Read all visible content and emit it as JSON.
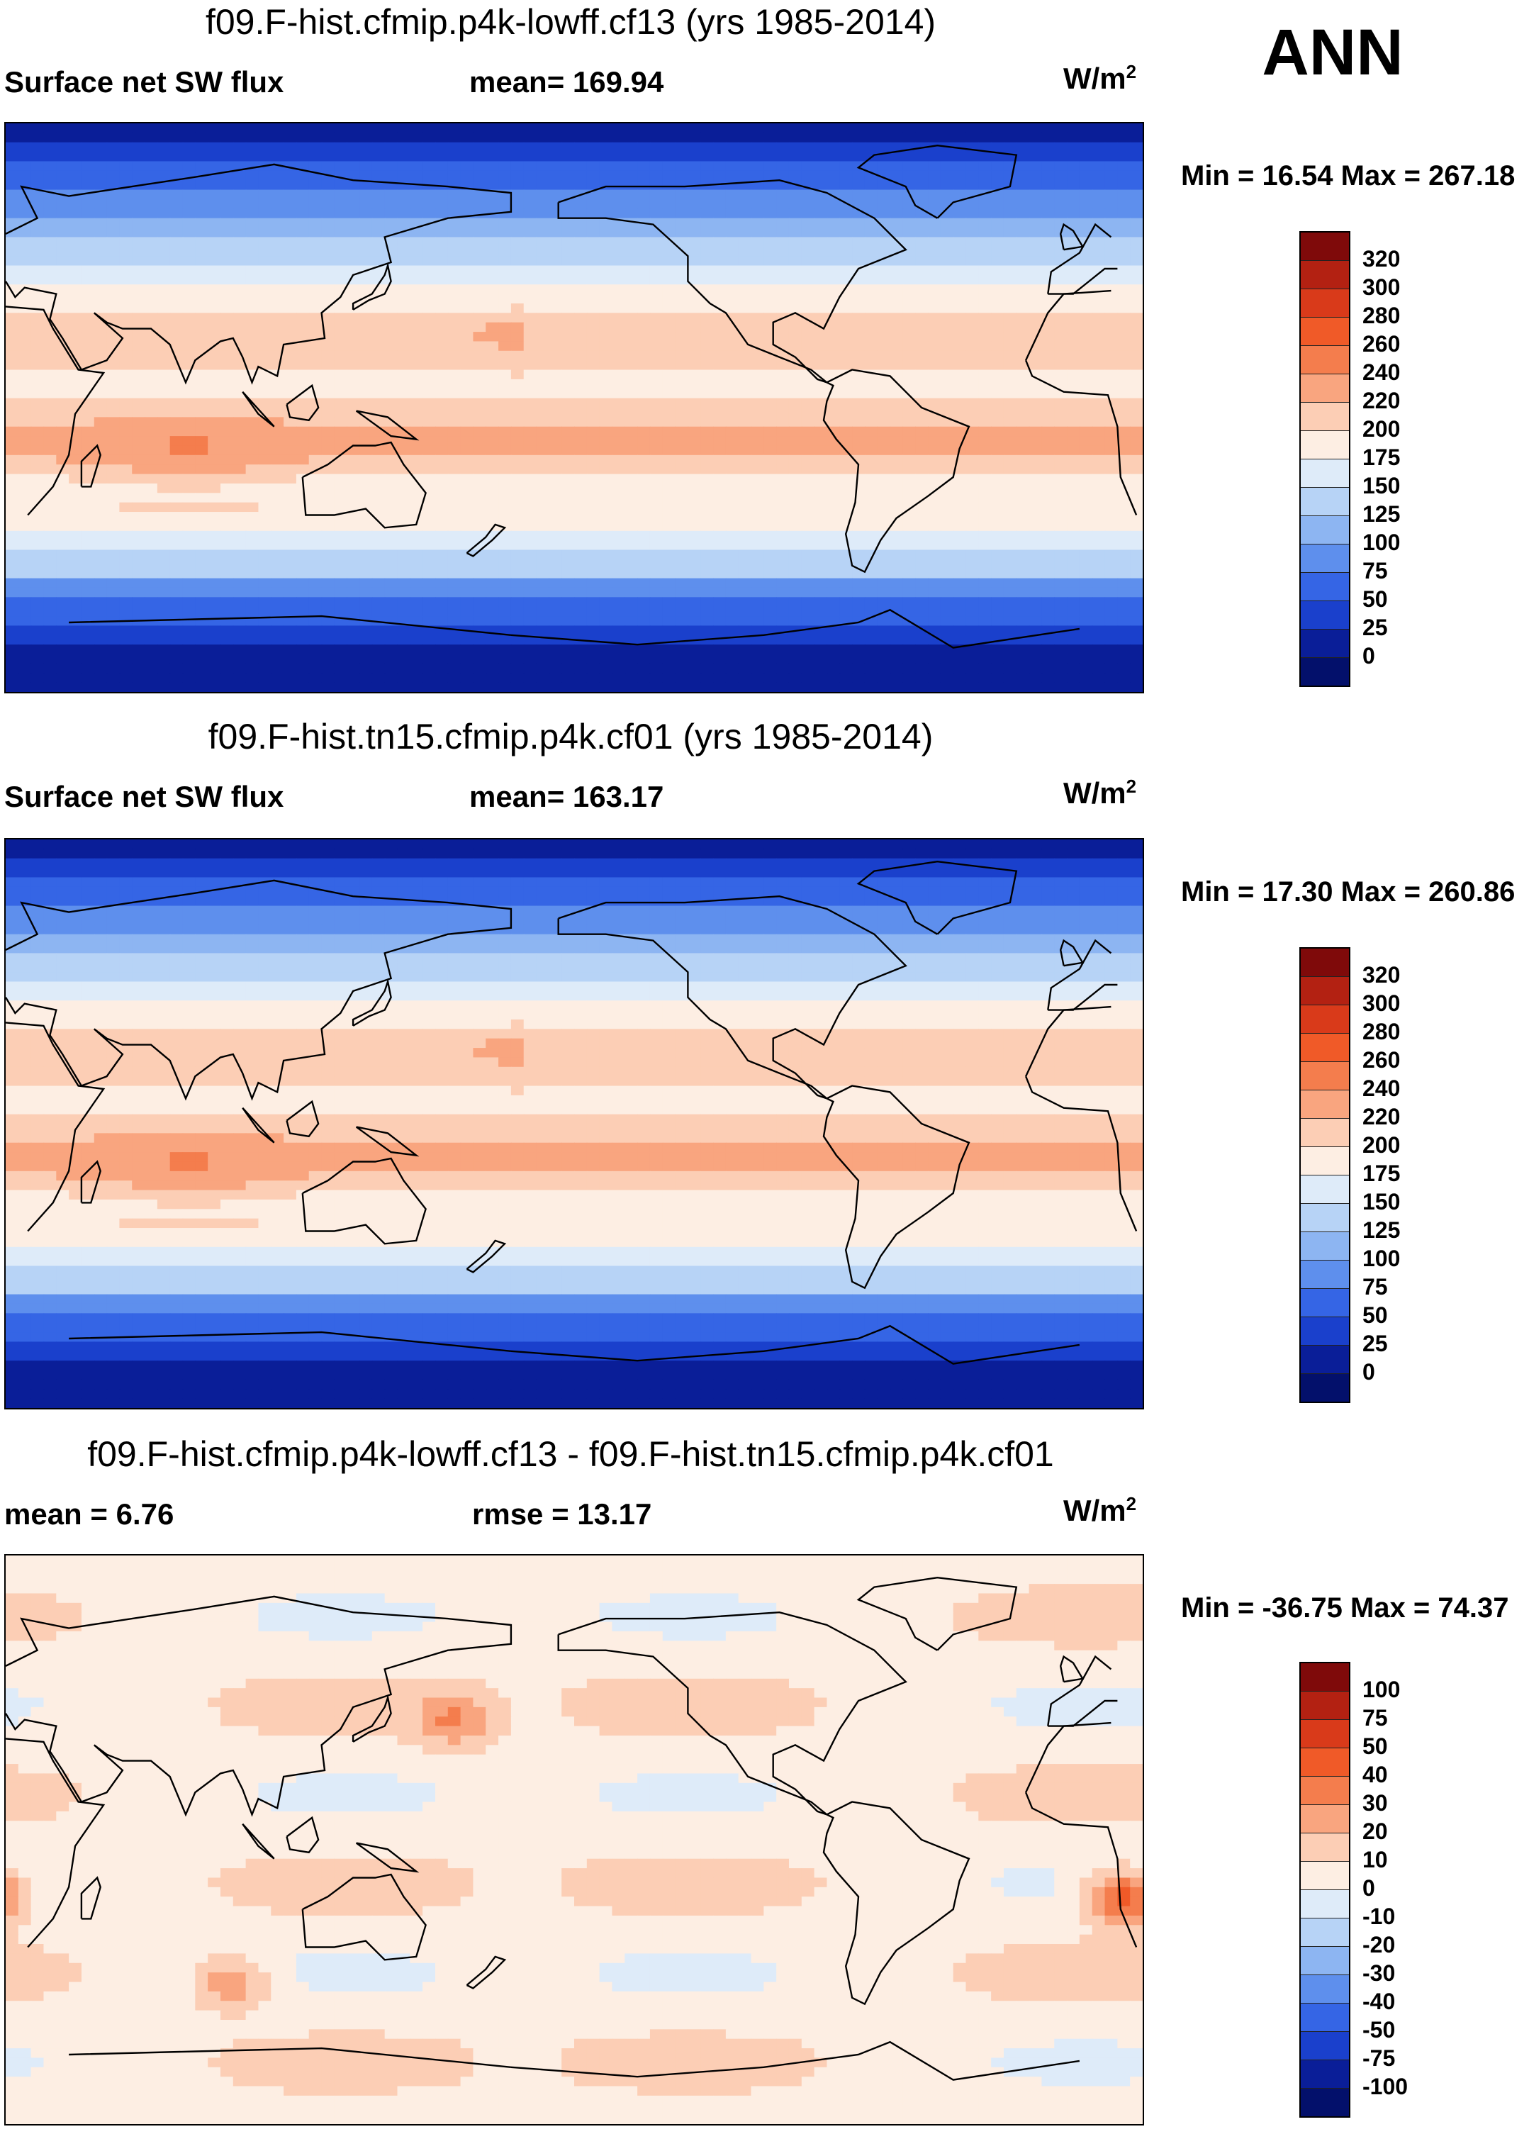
{
  "season": "ANN",
  "panels": [
    {
      "title": "f09.F-hist.cfmip.p4k-lowff.cf13 (yrs 1985-2014)",
      "left": "Surface net SW flux",
      "center": "mean= 169.94",
      "units": "W/m",
      "units_sup": "2",
      "minmax": "Min =  16.54 Max = 267.18",
      "colorbar": {
        "labels": [
          "320",
          "300",
          "280",
          "260",
          "240",
          "220",
          "200",
          "175",
          "150",
          "125",
          "100",
          "75",
          "50",
          "25",
          "0"
        ],
        "colors": [
          "#7f0a0a",
          "#b32112",
          "#d93a1a",
          "#f05a28",
          "#f47d4d",
          "#f9a57f",
          "#fcceb5",
          "#fdeee3",
          "#deebf9",
          "#b7d3f6",
          "#8db5f2",
          "#5e8fed",
          "#3565e5",
          "#1a40cc",
          "#0a1e98",
          "#03106b"
        ]
      },
      "field": "abs"
    },
    {
      "title": "f09.F-hist.tn15.cfmip.p4k.cf01 (yrs 1985-2014)",
      "left": "Surface net SW flux",
      "center": "mean= 163.17",
      "units": "W/m",
      "units_sup": "2",
      "minmax": "Min =  17.30 Max = 260.86",
      "colorbar": {
        "labels": [
          "320",
          "300",
          "280",
          "260",
          "240",
          "220",
          "200",
          "175",
          "150",
          "125",
          "100",
          "75",
          "50",
          "25",
          "0"
        ],
        "colors": [
          "#7f0a0a",
          "#b32112",
          "#d93a1a",
          "#f05a28",
          "#f47d4d",
          "#f9a57f",
          "#fcceb5",
          "#fdeee3",
          "#deebf9",
          "#b7d3f6",
          "#8db5f2",
          "#5e8fed",
          "#3565e5",
          "#1a40cc",
          "#0a1e98",
          "#03106b"
        ]
      },
      "field": "abs"
    },
    {
      "title": "f09.F-hist.cfmip.p4k-lowff.cf13 - f09.F-hist.tn15.cfmip.p4k.cf01",
      "left": "mean =   6.76",
      "center": "rmse =  13.17",
      "units": "W/m",
      "units_sup": "2",
      "minmax": "Min = -36.75 Max =  74.37",
      "colorbar": {
        "labels": [
          "100",
          "75",
          "50",
          "40",
          "30",
          "20",
          "10",
          "0",
          "-10",
          "-20",
          "-30",
          "-40",
          "-50",
          "-75",
          "-100"
        ],
        "colors": [
          "#7f0a0a",
          "#b32112",
          "#d93a1a",
          "#f05a28",
          "#f47d4d",
          "#f9a57f",
          "#fcceb5",
          "#fdeee3",
          "#deebf9",
          "#b7d3f6",
          "#8db5f2",
          "#5e8fed",
          "#3565e5",
          "#1a40cc",
          "#0a1e98",
          "#03106b"
        ]
      },
      "field": "diff"
    }
  ]
}
